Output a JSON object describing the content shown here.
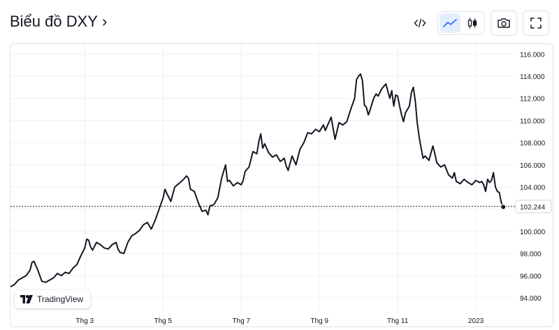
{
  "header": {
    "title": "Biểu đồ DXY",
    "title_chevron": "›",
    "tools": [
      {
        "name": "embed-icon"
      },
      {
        "name": "line-chart-icon",
        "active": true
      },
      {
        "name": "candlestick-icon"
      },
      {
        "name": "camera-icon"
      },
      {
        "name": "fullscreen-icon"
      }
    ]
  },
  "colors": {
    "line": "#131722",
    "accent_bg": "#e3effd",
    "accent": "#2962ff",
    "grid": "#eef0f3"
  },
  "badge": {
    "label": "TradingView"
  },
  "chart_data": {
    "type": "line",
    "title": "",
    "xlabel": "",
    "ylabel": "",
    "ylim": [
      92.8,
      116.9
    ],
    "y_ticks": [
      "116.000",
      "114.000",
      "112.000",
      "110.000",
      "108.000",
      "106.000",
      "104.000",
      "102.000",
      "100.000",
      "98.000",
      "96.000",
      "94.000"
    ],
    "x_ticks": [
      {
        "label": "Thg 3",
        "t": 1.9
      },
      {
        "label": "Thg 5",
        "t": 3.9
      },
      {
        "label": "Thg 7",
        "t": 5.9
      },
      {
        "label": "Thg 9",
        "t": 7.9
      },
      {
        "label": "Thg 11",
        "t": 9.9
      },
      {
        "label": "2023",
        "t": 11.9
      }
    ],
    "last_price": 102.244,
    "last_price_label": "102.244",
    "grid": true,
    "series": [
      {
        "points": [
          [
            0.0,
            95.0
          ],
          [
            0.1,
            95.2
          ],
          [
            0.2,
            95.6
          ],
          [
            0.3,
            95.8
          ],
          [
            0.4,
            96.0
          ],
          [
            0.5,
            96.5
          ],
          [
            0.55,
            97.2
          ],
          [
            0.6,
            97.3
          ],
          [
            0.7,
            96.5
          ],
          [
            0.75,
            96.0
          ],
          [
            0.8,
            95.5
          ],
          [
            0.9,
            95.4
          ],
          [
            1.0,
            95.6
          ],
          [
            1.1,
            95.8
          ],
          [
            1.2,
            96.2
          ],
          [
            1.3,
            96.0
          ],
          [
            1.4,
            96.3
          ],
          [
            1.5,
            96.2
          ],
          [
            1.6,
            96.7
          ],
          [
            1.7,
            97.0
          ],
          [
            1.8,
            97.8
          ],
          [
            1.9,
            98.5
          ],
          [
            1.95,
            99.3
          ],
          [
            2.0,
            99.2
          ],
          [
            2.05,
            98.6
          ],
          [
            2.1,
            98.3
          ],
          [
            2.2,
            99.0
          ],
          [
            2.3,
            98.8
          ],
          [
            2.4,
            98.5
          ],
          [
            2.5,
            98.4
          ],
          [
            2.6,
            98.8
          ],
          [
            2.7,
            99.0
          ],
          [
            2.75,
            98.4
          ],
          [
            2.8,
            98.1
          ],
          [
            2.9,
            98.0
          ],
          [
            3.0,
            99.0
          ],
          [
            3.1,
            99.6
          ],
          [
            3.2,
            99.8
          ],
          [
            3.3,
            100.1
          ],
          [
            3.4,
            100.6
          ],
          [
            3.5,
            100.8
          ],
          [
            3.6,
            100.2
          ],
          [
            3.7,
            101.0
          ],
          [
            3.8,
            102.0
          ],
          [
            3.9,
            103.0
          ],
          [
            3.95,
            103.8
          ],
          [
            4.0,
            103.4
          ],
          [
            4.1,
            102.7
          ],
          [
            4.2,
            104.0
          ],
          [
            4.3,
            104.3
          ],
          [
            4.4,
            104.6
          ],
          [
            4.5,
            105.0
          ],
          [
            4.55,
            104.8
          ],
          [
            4.6,
            103.8
          ],
          [
            4.7,
            103.6
          ],
          [
            4.8,
            102.6
          ],
          [
            4.9,
            101.8
          ],
          [
            5.0,
            101.9
          ],
          [
            5.05,
            101.5
          ],
          [
            5.1,
            102.3
          ],
          [
            5.2,
            102.4
          ],
          [
            5.3,
            103.0
          ],
          [
            5.4,
            104.8
          ],
          [
            5.5,
            106.0
          ],
          [
            5.55,
            104.5
          ],
          [
            5.6,
            104.6
          ],
          [
            5.7,
            104.1
          ],
          [
            5.8,
            104.4
          ],
          [
            5.9,
            104.2
          ],
          [
            5.95,
            104.6
          ],
          [
            6.0,
            105.4
          ],
          [
            6.1,
            105.8
          ],
          [
            6.2,
            107.2
          ],
          [
            6.3,
            107.0
          ],
          [
            6.35,
            108.1
          ],
          [
            6.4,
            108.8
          ],
          [
            6.45,
            107.5
          ],
          [
            6.5,
            107.9
          ],
          [
            6.6,
            107.1
          ],
          [
            6.7,
            106.7
          ],
          [
            6.8,
            106.9
          ],
          [
            6.9,
            106.3
          ],
          [
            7.0,
            106.6
          ],
          [
            7.05,
            105.9
          ],
          [
            7.1,
            105.5
          ],
          [
            7.2,
            106.8
          ],
          [
            7.3,
            106.0
          ],
          [
            7.4,
            107.4
          ],
          [
            7.5,
            108.0
          ],
          [
            7.6,
            108.9
          ],
          [
            7.7,
            108.8
          ],
          [
            7.8,
            109.2
          ],
          [
            7.9,
            109.0
          ],
          [
            8.0,
            109.6
          ],
          [
            8.05,
            109.1
          ],
          [
            8.1,
            109.5
          ],
          [
            8.2,
            110.3
          ],
          [
            8.3,
            108.3
          ],
          [
            8.4,
            109.8
          ],
          [
            8.5,
            109.6
          ],
          [
            8.6,
            109.9
          ],
          [
            8.7,
            111.0
          ],
          [
            8.8,
            112.0
          ],
          [
            8.85,
            113.7
          ],
          [
            8.9,
            114.0
          ],
          [
            8.95,
            114.2
          ],
          [
            9.0,
            113.6
          ],
          [
            9.05,
            111.4
          ],
          [
            9.1,
            111.2
          ],
          [
            9.15,
            110.5
          ],
          [
            9.2,
            111.0
          ],
          [
            9.25,
            111.6
          ],
          [
            9.3,
            112.1
          ],
          [
            9.35,
            112.4
          ],
          [
            9.4,
            112.2
          ],
          [
            9.5,
            112.9
          ],
          [
            9.6,
            113.3
          ],
          [
            9.7,
            112.0
          ],
          [
            9.75,
            112.7
          ],
          [
            9.8,
            111.3
          ],
          [
            9.85,
            112.3
          ],
          [
            9.9,
            112.2
          ],
          [
            9.95,
            111.3
          ],
          [
            10.0,
            110.5
          ],
          [
            10.05,
            109.9
          ],
          [
            10.1,
            110.7
          ],
          [
            10.2,
            111.3
          ],
          [
            10.25,
            112.5
          ],
          [
            10.3,
            113.0
          ],
          [
            10.35,
            111.8
          ],
          [
            10.4,
            109.8
          ],
          [
            10.45,
            108.5
          ],
          [
            10.5,
            107.5
          ],
          [
            10.55,
            106.6
          ],
          [
            10.6,
            106.8
          ],
          [
            10.7,
            106.4
          ],
          [
            10.8,
            107.7
          ],
          [
            10.85,
            107.0
          ],
          [
            10.9,
            106.2
          ],
          [
            11.0,
            105.8
          ],
          [
            11.1,
            106.0
          ],
          [
            11.2,
            105.1
          ],
          [
            11.3,
            104.8
          ],
          [
            11.35,
            105.3
          ],
          [
            11.4,
            104.5
          ],
          [
            11.5,
            104.3
          ],
          [
            11.6,
            104.7
          ],
          [
            11.7,
            104.4
          ],
          [
            11.8,
            104.2
          ],
          [
            11.9,
            104.6
          ],
          [
            12.0,
            104.4
          ],
          [
            12.05,
            104.5
          ],
          [
            12.1,
            104.2
          ],
          [
            12.15,
            103.6
          ],
          [
            12.2,
            104.7
          ],
          [
            12.25,
            104.4
          ],
          [
            12.3,
            104.6
          ],
          [
            12.35,
            105.3
          ],
          [
            12.4,
            104.0
          ],
          [
            12.45,
            103.6
          ],
          [
            12.5,
            103.5
          ],
          [
            12.55,
            102.6
          ],
          [
            12.6,
            102.2
          ]
        ]
      }
    ]
  }
}
